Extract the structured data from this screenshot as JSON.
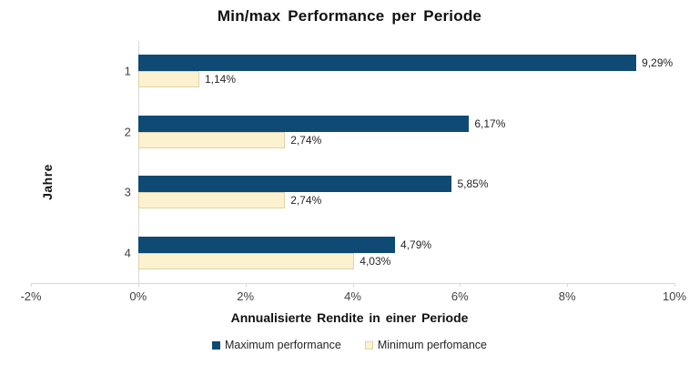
{
  "chart_data": {
    "type": "bar",
    "orientation": "horizontal",
    "title": "Min/max Performance per Periode",
    "xlabel": "Annualisierte Rendite in einer Periode",
    "ylabel": "Jahre",
    "categories": [
      "1",
      "2",
      "3",
      "4"
    ],
    "series": [
      {
        "name": "Maximum performance",
        "color": "#0E4A73",
        "values": [
          9.29,
          6.17,
          5.85,
          4.79
        ],
        "labels": [
          "9,29%",
          "6,17%",
          "5,85%",
          "4,79%"
        ]
      },
      {
        "name": "Minimum perfomance",
        "color": "#FCF2CF",
        "border_color": "#E0D3A8",
        "values": [
          1.14,
          2.74,
          2.74,
          4.03
        ],
        "labels": [
          "1,14%",
          "2,74%",
          "2,74%",
          "4,03%"
        ]
      }
    ],
    "xlim": [
      -2,
      10
    ],
    "x_ticks": [
      {
        "value": -2,
        "label": "-2%"
      },
      {
        "value": 0,
        "label": "0%"
      },
      {
        "value": 2,
        "label": "2%"
      },
      {
        "value": 4,
        "label": "4%"
      },
      {
        "value": 6,
        "label": "6%"
      },
      {
        "value": 8,
        "label": "8%"
      },
      {
        "value": 10,
        "label": "10%"
      }
    ],
    "grid": false,
    "legend_position": "bottom",
    "axis_color": "#D9D9D9",
    "tick_text_color": "#404040",
    "label_text_color": "#262626"
  }
}
